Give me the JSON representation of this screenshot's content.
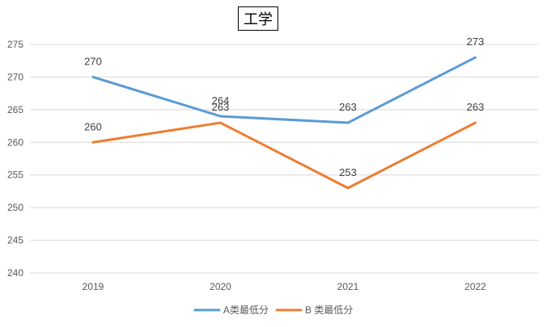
{
  "chart_data": {
    "type": "line",
    "title": "工学",
    "categories": [
      "2019",
      "2020",
      "2021",
      "2022"
    ],
    "series": [
      {
        "name": "A类最低分",
        "color": "#5B9BD5",
        "values": [
          270,
          264,
          263,
          273
        ]
      },
      {
        "name": "B 类最低分",
        "color": "#ED7D31",
        "values": [
          260,
          263,
          253,
          263
        ]
      }
    ],
    "ylim": [
      240,
      275
    ],
    "yticks": [
      240,
      245,
      250,
      255,
      260,
      265,
      270,
      275
    ],
    "grid": true,
    "legend": "bottom"
  }
}
